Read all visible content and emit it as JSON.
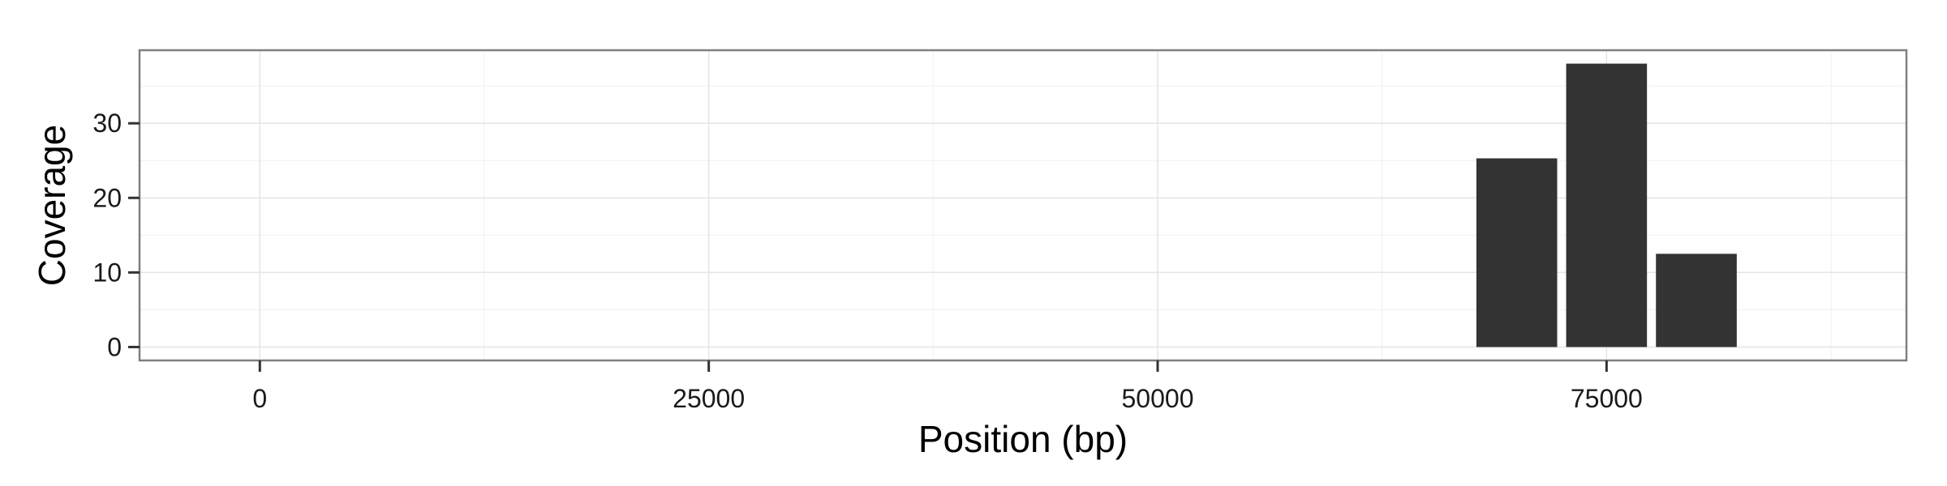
{
  "chart_data": {
    "type": "bar",
    "xlabel": "Position (bp)",
    "ylabel": "Coverage",
    "x_ticks": [
      0,
      25000,
      50000,
      75000
    ],
    "y_ticks": [
      0,
      10,
      20,
      30
    ],
    "x_tick_labels": [
      "0",
      "25000",
      "50000",
      "75000"
    ],
    "y_tick_labels": [
      "0",
      "10",
      "20",
      "30"
    ],
    "xlim": [
      -6700,
      91700
    ],
    "ylim": [
      -1.8,
      39.8
    ],
    "bin_width": 5000,
    "x": [
      70000,
      75000,
      80000
    ],
    "values": [
      25.3,
      38,
      12.5
    ],
    "grid": true,
    "bar_color": "#333333",
    "background": "#ffffff"
  }
}
